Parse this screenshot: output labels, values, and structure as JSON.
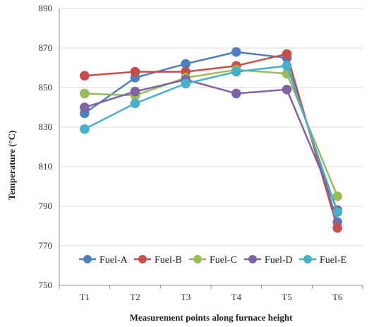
{
  "chart_data": {
    "type": "line",
    "title": "",
    "xlabel": "Measurement points along furnace height",
    "ylabel": "Temperature (°C)",
    "categories": [
      "T1",
      "T2",
      "T3",
      "T4",
      "T5",
      "T6"
    ],
    "yticks": [
      750,
      770,
      790,
      810,
      830,
      850,
      870,
      890
    ],
    "ylim": [
      750,
      890
    ],
    "grid": "horizontal",
    "legend_position": "inside-bottom-center",
    "series": [
      {
        "name": "Fuel-A",
        "color": "#4f7fc2",
        "values": [
          837,
          855,
          862,
          868,
          865,
          782
        ]
      },
      {
        "name": "Fuel-B",
        "color": "#c64f4b",
        "values": [
          856,
          858,
          858,
          861,
          867,
          779
        ]
      },
      {
        "name": "Fuel-C",
        "color": "#9bbb59",
        "values": [
          847,
          846,
          855,
          859,
          857,
          795
        ]
      },
      {
        "name": "Fuel-D",
        "color": "#7f63a3",
        "values": [
          840,
          848,
          854,
          847,
          849,
          788
        ]
      },
      {
        "name": "Fuel-E",
        "color": "#46afc9",
        "values": [
          829,
          842,
          852,
          858,
          861,
          787
        ]
      }
    ]
  }
}
